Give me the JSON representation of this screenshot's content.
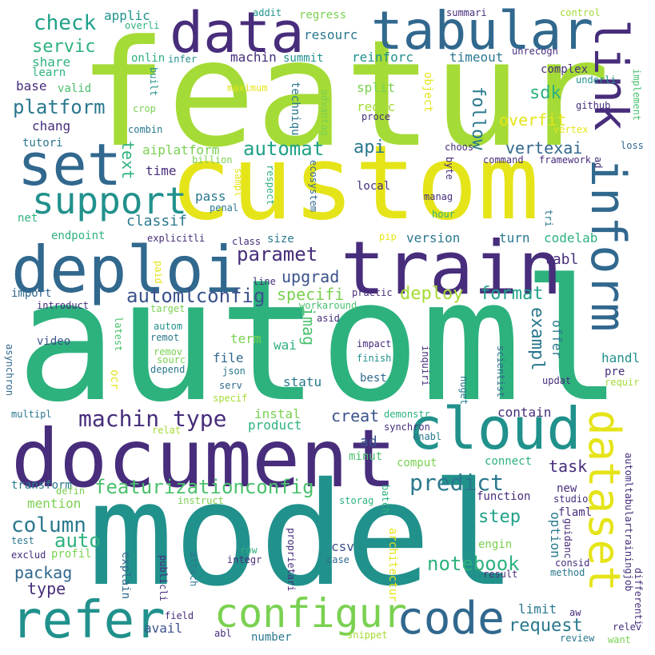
{
  "palette": {
    "yellow": "#e5e419",
    "lime": "#a5db36",
    "green": "#7ad151",
    "mint": "#4ac16d",
    "emerald": "#2db27d",
    "teal": "#1fa188",
    "cyan": "#21918c",
    "steel": "#2a788e",
    "blue": "#31688e",
    "indigo": "#3b528b",
    "violet": "#443983",
    "purple": "#472d7b",
    "dark": "#440154"
  },
  "words": {
    "featur": "featur",
    "custom": "custom",
    "automl": "automl",
    "model": "model",
    "document": "document",
    "train": "train",
    "deploi": "deploi",
    "set": "set",
    "data": "data",
    "tabular": "tabular",
    "link": "link",
    "inform": "inform",
    "cloud": "cloud",
    "dataset": "dataset",
    "refer": "refer",
    "configur": "configur",
    "code": "code",
    "support": "support",
    "machin_type": "machin type",
    "featurizationconfig": "featurizationconfig",
    "predict": "predict",
    "column": "column",
    "notebook": "notebook",
    "automat": "automat",
    "paramet": "paramet",
    "automlconfig": "automlconfig",
    "check": "check",
    "servic": "servic",
    "platform": "platform",
    "auto": "auto",
    "deploy": "deploy",
    "format": "format",
    "sdk": "sdk",
    "api": "api",
    "vertexai": "vertexai",
    "overfit": "overfit",
    "follow": "follow",
    "text": "text",
    "imag": "imag",
    "exampl": "exampl",
    "creat": "creat",
    "request": "request",
    "task": "task",
    "step": "step",
    "packag": "packag",
    "type": "type",
    "upgrad": "upgrad",
    "specifi": "specifi",
    "classif": "classif",
    "tabl": "tabl",
    "applic": "applic",
    "resourc": "resourc",
    "regress": "regress",
    "share": "share",
    "onlin": "onlin",
    "infer": "infer",
    "machin": "machin",
    "reinforc": "reinforc",
    "summit": "summit",
    "timeout": "timeout",
    "learn": "learn",
    "base": "base",
    "valid": "valid",
    "split": "split",
    "chang": "chang",
    "reduc": "reduc",
    "tutori": "tutori",
    "aiplatform": "aiplatform",
    "time": "time",
    "pass": "pass",
    "net": "net",
    "endpoint": "endpoint",
    "size": "size",
    "version": "version",
    "turn": "turn",
    "codelab": "codelab",
    "import": "import",
    "video": "video",
    "term": "term",
    "file": "file",
    "wai": "wai",
    "statu": "statu",
    "best": "best",
    "ocr": "ocr",
    "offer": "offer",
    "handl": "handl",
    "pre": "pre",
    "instal": "instal",
    "product": "product",
    "contain": "contain",
    "ad": "ad",
    "minut": "minut",
    "connect": "connect",
    "transform": "transform",
    "mention": "mention",
    "function": "function",
    "new": "new",
    "avail": "avail",
    "limit": "limit",
    "csv": "csv",
    "engin": "engin",
    "option": "option",
    "explain": "explain",
    "profil": "profil",
    "architectur": "architectur",
    "addit": "addit",
    "summari": "summari",
    "control": "control",
    "overli": "overli",
    "unrecogn": "unrecogn",
    "complex": "complex",
    "underli": "underli",
    "built": "built",
    "maximum": "maximum",
    "object": "object",
    "techniqu": "techniqu",
    "advantag": "advantag",
    "github": "github",
    "implement": "implement",
    "crop": "crop",
    "proce": "proce",
    "combin": "combin",
    "vertex": "vertex",
    "choos": "choos",
    "command": "command",
    "framework": "framework",
    "loss": "loss",
    "billion": "billion",
    "byte": "byte",
    "sampl": "sampl",
    "respect": "respect",
    "ecosystem": "ecosystem",
    "manag": "manag",
    "penal": "penal",
    "local": "local",
    "hour": "hour",
    "tri": "tri",
    "explicitli": "explicitli",
    "paid": "paid",
    "class": "class",
    "pip": "pip",
    "line": "line",
    "introduct": "introduct",
    "target": "target",
    "practic": "practic",
    "workaround": "workaround",
    "asid": "asid",
    "latest": "latest",
    "autom": "autom",
    "remot": "remot",
    "remov": "remov",
    "sourc": "sourc",
    "depend": "depend",
    "impact": "impact",
    "finish": "finish",
    "inquiri": "inquiri",
    "scientist": "scientist",
    "json": "json",
    "serv": "serv",
    "specif": "specif",
    "nuget": "nuget",
    "updat": "updat",
    "requir": "requir",
    "asynchron": "asynchron",
    "multipl": "multipl",
    "relat": "relat",
    "demonstr": "demonstr",
    "synchron": "synchron",
    "enabl": "enabl",
    "comput": "comput",
    "defin": "defin",
    "instruct": "instruct",
    "storag": "storag",
    "batch": "batch",
    "studio": "studio",
    "flaml": "flaml",
    "guidanc": "guidanc",
    "test": "test",
    "exclud": "exclud",
    "row": "row",
    "integr": "integr",
    "proprietari": "proprietari",
    "case": "case",
    "consid": "consid",
    "automltabulartrainingjob": "automltabulartrainingjob",
    "publicli": "publicli",
    "attach": "attach",
    "result": "result",
    "method": "method",
    "differenti": "differenti",
    "field": "field",
    "abl": "abl",
    "number": "number",
    "snippet": "snippet",
    "aw": "aw",
    "review": "review",
    "want": "want",
    "relev": "relev"
  }
}
